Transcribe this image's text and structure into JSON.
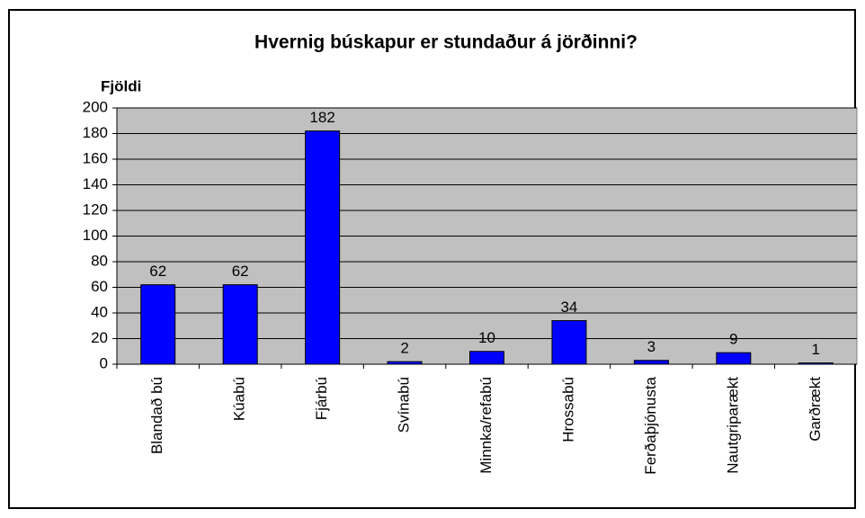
{
  "chart_data": {
    "type": "bar",
    "title": "Hvernig búskapur er stundaður á jörðinni?",
    "y_label": "Fjöldi",
    "categories": [
      "Blandað bú",
      "Kúabú",
      "Fjárbú",
      "Svínabú",
      "Minnka/refabú",
      "Hrossabú",
      "Ferðaþjónusta",
      "Nautgriparækt",
      "Garðrækt"
    ],
    "values": [
      62,
      62,
      182,
      2,
      10,
      34,
      3,
      9,
      1
    ],
    "color": "#0000ff",
    "ylim": [
      0,
      200
    ],
    "yticks": [
      0,
      20,
      40,
      60,
      80,
      100,
      120,
      140,
      160,
      180,
      200
    ],
    "grid": true
  }
}
